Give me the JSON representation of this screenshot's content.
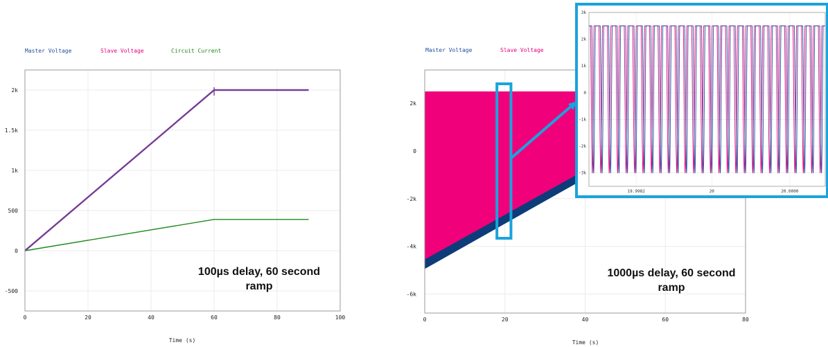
{
  "chart_data": [
    {
      "type": "line",
      "title": "",
      "xlabel": "Time (s)",
      "ylabel": "",
      "xlim": [
        0,
        100
      ],
      "ylim": [
        -750,
        2250
      ],
      "x_ticks": [
        0,
        20,
        40,
        60,
        80,
        100
      ],
      "y_ticks": [
        -500,
        0,
        500,
        1000,
        1500,
        2000
      ],
      "y_tick_labels": [
        "-500",
        "0",
        "500",
        "1k",
        "1.5k",
        "2k"
      ],
      "grid": true,
      "legend_position": "top-left",
      "series": [
        {
          "name": "Master Voltage",
          "color": "#1f4e9c",
          "x": [
            0,
            60,
            90
          ],
          "y": [
            0,
            2000,
            2000
          ]
        },
        {
          "name": "Slave Voltage",
          "color": "#e8007f",
          "x": [
            0,
            60,
            90
          ],
          "y": [
            0,
            2000,
            2000
          ]
        },
        {
          "name": "Circuit Current",
          "color": "#1f8a1f",
          "x": [
            0,
            60,
            90
          ],
          "y": [
            0,
            390,
            390
          ]
        }
      ],
      "overlap_color": "#7b3a96",
      "annotation": [
        "100µs delay, 60 second",
        "ramp"
      ]
    },
    {
      "type": "area",
      "title": "",
      "xlabel": "Time (s)",
      "ylabel": "",
      "xlim": [
        0,
        80
      ],
      "ylim": [
        -6800,
        3400
      ],
      "x_ticks": [
        0,
        20,
        40,
        60,
        80
      ],
      "y_ticks": [
        -6000,
        -4000,
        -2000,
        0,
        2000
      ],
      "y_tick_labels": [
        "-6k",
        "-4k",
        "-2k",
        "0",
        "2k"
      ],
      "grid": true,
      "legend_position": "top-left",
      "series": [
        {
          "name": "Master Voltage",
          "color": "#0e3c7a",
          "x": [
            0,
            40
          ],
          "y_max": [
            2500,
            2500
          ],
          "y_min": [
            -4950,
            -1150
          ]
        },
        {
          "name": "Slave Voltage",
          "color": "#f0007a",
          "x": [
            0,
            40
          ],
          "y_max": [
            2500,
            2500
          ],
          "y_min": [
            -4550,
            -800
          ]
        }
      ],
      "highlight_x_range": [
        18,
        21.5
      ],
      "annotation": [
        "1000µs delay, 60 second",
        "ramp"
      ],
      "inset": {
        "type": "line",
        "x_tick_labels": [
          "19.9982",
          "20",
          "20.0000"
        ],
        "y_ticks": [
          -3000,
          -2000,
          -1000,
          0,
          1000,
          2000,
          3000
        ],
        "y_tick_labels": [
          "-3k",
          "-2k",
          "-1k",
          "0",
          "1k",
          "2k",
          "3k"
        ],
        "ylim": [
          -3500,
          3000
        ],
        "cycles": 28,
        "high": 2500,
        "low": -3000,
        "series_colors": [
          "#e8007f",
          "#1f4e9c"
        ]
      }
    }
  ]
}
